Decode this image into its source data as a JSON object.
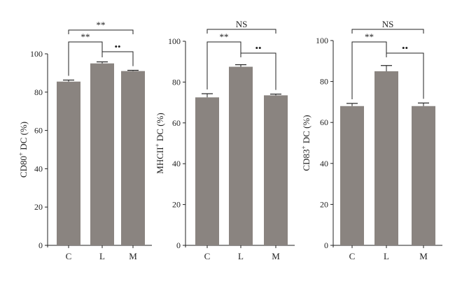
{
  "colors": {
    "bar": "#8a8480",
    "axis": "#222222",
    "background": "#ffffff"
  },
  "chart_data": [
    {
      "type": "bar",
      "categories": [
        "C",
        "L",
        "M"
      ],
      "values": [
        85.5,
        95,
        91
      ],
      "errors": [
        0.8,
        0.8,
        0.4
      ],
      "ylabel_main": "CD80",
      "ylabel_sup": "+",
      "ylabel_rest": " DC (%)",
      "ylim": [
        0,
        100
      ],
      "yticks": [
        "0",
        "20",
        "40",
        "60",
        "80",
        "100"
      ],
      "comparisons": [
        {
          "from": "C",
          "to": "L",
          "label": "**"
        },
        {
          "from": "L",
          "to": "M",
          "label": "••"
        },
        {
          "from": "C",
          "to": "M",
          "label": "**"
        }
      ]
    },
    {
      "type": "bar",
      "categories": [
        "C",
        "L",
        "M"
      ],
      "values": [
        72.5,
        87.5,
        73.5
      ],
      "errors": [
        1.8,
        1.0,
        0.6
      ],
      "ylabel_main": "MHCII",
      "ylabel_sup": "+",
      "ylabel_rest": " DC (%)",
      "ylim": [
        0,
        100
      ],
      "yticks": [
        "0",
        "20",
        "40",
        "60",
        "80",
        "100"
      ],
      "comparisons": [
        {
          "from": "C",
          "to": "L",
          "label": "**"
        },
        {
          "from": "L",
          "to": "M",
          "label": "••"
        },
        {
          "from": "C",
          "to": "M",
          "label": "NS"
        }
      ]
    },
    {
      "type": "bar",
      "categories": [
        "C",
        "L",
        "M"
      ],
      "values": [
        68,
        85,
        68
      ],
      "errors": [
        1.3,
        2.8,
        1.5
      ],
      "ylabel_main": "CD83",
      "ylabel_sup": "+",
      "ylabel_rest": " DC (%)",
      "ylim": [
        0,
        100
      ],
      "yticks": [
        "0",
        "20",
        "40",
        "60",
        "80",
        "100"
      ],
      "comparisons": [
        {
          "from": "C",
          "to": "L",
          "label": "**"
        },
        {
          "from": "L",
          "to": "M",
          "label": "••"
        },
        {
          "from": "C",
          "to": "M",
          "label": "NS"
        }
      ]
    }
  ]
}
